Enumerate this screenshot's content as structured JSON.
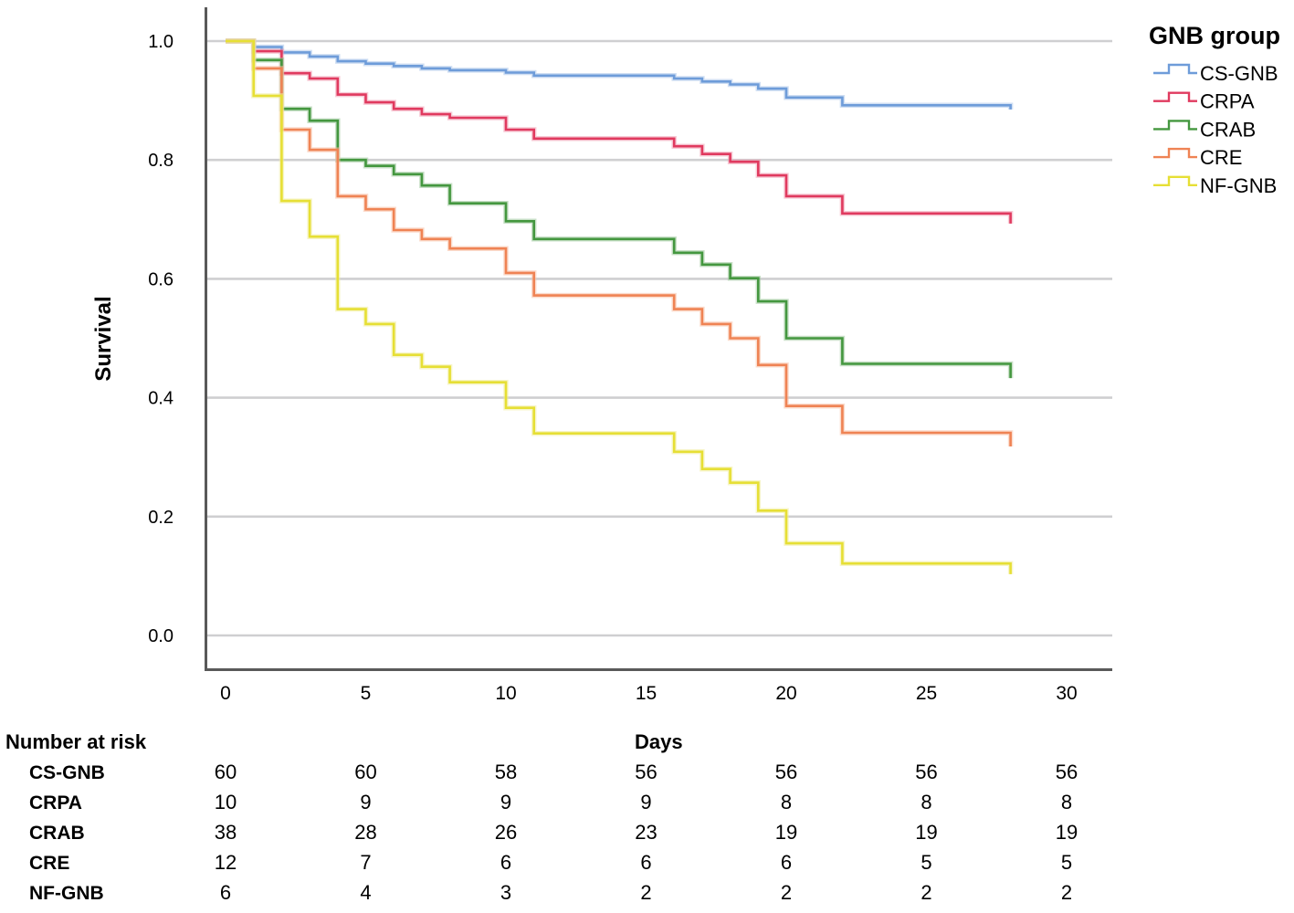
{
  "chart_data": {
    "type": "line",
    "subtype": "kaplan_meier_step_survival",
    "xlabel": "Days",
    "ylabel": "Survival",
    "legend_title": "GNB group",
    "legend_position": "outside-top-right",
    "grid": "horizontal",
    "xlim": [
      0,
      30
    ],
    "ylim": [
      0.0,
      1.0
    ],
    "x_ticks": [
      0,
      5,
      10,
      15,
      20,
      25,
      30
    ],
    "y_ticks": [
      1.0,
      0.8,
      0.6,
      0.4,
      0.2,
      0.0
    ],
    "y_tick_labels": [
      "1.0",
      "0.8",
      "0.6",
      "0.4",
      "0.2",
      "0.0"
    ],
    "axis_color": "#595959",
    "grid_color": "#CFCFD1",
    "series": [
      {
        "name": "CS-GNB",
        "color": "#6E9CD9",
        "halo": "#A9C5EA",
        "points": [
          [
            0,
            1.0
          ],
          [
            1,
            0.99
          ],
          [
            2,
            0.981
          ],
          [
            3,
            0.974
          ],
          [
            4,
            0.966
          ],
          [
            5,
            0.962
          ],
          [
            6,
            0.958
          ],
          [
            7,
            0.954
          ],
          [
            8,
            0.951
          ],
          [
            10,
            0.947
          ],
          [
            11,
            0.942
          ],
          [
            16,
            0.937
          ],
          [
            17,
            0.932
          ],
          [
            18,
            0.927
          ],
          [
            19,
            0.92
          ],
          [
            20,
            0.905
          ],
          [
            22,
            0.892
          ],
          [
            28,
            0.885
          ]
        ]
      },
      {
        "name": "CRPA",
        "color": "#E03A5F",
        "halo": "#F0A1B4",
        "points": [
          [
            0,
            1.0
          ],
          [
            1,
            0.983
          ],
          [
            2,
            0.946
          ],
          [
            3,
            0.937
          ],
          [
            4,
            0.91
          ],
          [
            5,
            0.897
          ],
          [
            6,
            0.886
          ],
          [
            7,
            0.877
          ],
          [
            8,
            0.871
          ],
          [
            10,
            0.851
          ],
          [
            11,
            0.836
          ],
          [
            16,
            0.823
          ],
          [
            17,
            0.81
          ],
          [
            18,
            0.797
          ],
          [
            19,
            0.774
          ],
          [
            20,
            0.739
          ],
          [
            22,
            0.71
          ],
          [
            28,
            0.693
          ]
        ]
      },
      {
        "name": "CRAB",
        "color": "#44973F",
        "halo": "#9CC79A",
        "points": [
          [
            0,
            1.0
          ],
          [
            1,
            0.968
          ],
          [
            2,
            0.886
          ],
          [
            3,
            0.866
          ],
          [
            4,
            0.8
          ],
          [
            5,
            0.79
          ],
          [
            6,
            0.776
          ],
          [
            7,
            0.757
          ],
          [
            8,
            0.727
          ],
          [
            10,
            0.697
          ],
          [
            11,
            0.667
          ],
          [
            16,
            0.644
          ],
          [
            17,
            0.624
          ],
          [
            18,
            0.601
          ],
          [
            19,
            0.562
          ],
          [
            20,
            0.5
          ],
          [
            22,
            0.457
          ],
          [
            28,
            0.433
          ]
        ]
      },
      {
        "name": "CRE",
        "color": "#EF8354",
        "halo": "#F7BFA4",
        "points": [
          [
            0,
            1.0
          ],
          [
            1,
            0.954
          ],
          [
            2,
            0.851
          ],
          [
            3,
            0.817
          ],
          [
            4,
            0.739
          ],
          [
            5,
            0.717
          ],
          [
            6,
            0.682
          ],
          [
            7,
            0.667
          ],
          [
            8,
            0.651
          ],
          [
            10,
            0.61
          ],
          [
            11,
            0.572
          ],
          [
            16,
            0.549
          ],
          [
            17,
            0.524
          ],
          [
            18,
            0.5
          ],
          [
            19,
            0.455
          ],
          [
            20,
            0.386
          ],
          [
            22,
            0.341
          ],
          [
            28,
            0.318
          ]
        ]
      },
      {
        "name": "NF-GNB",
        "color": "#E6DF35",
        "halo": "#F1EC9D",
        "points": [
          [
            0,
            1.0
          ],
          [
            1,
            0.908
          ],
          [
            2,
            0.731
          ],
          [
            3,
            0.671
          ],
          [
            4,
            0.549
          ],
          [
            5,
            0.524
          ],
          [
            6,
            0.472
          ],
          [
            7,
            0.452
          ],
          [
            8,
            0.426
          ],
          [
            10,
            0.383
          ],
          [
            11,
            0.34
          ],
          [
            16,
            0.309
          ],
          [
            17,
            0.28
          ],
          [
            18,
            0.257
          ],
          [
            19,
            0.21
          ],
          [
            20,
            0.155
          ],
          [
            22,
            0.121
          ],
          [
            28,
            0.103
          ]
        ]
      }
    ],
    "number_at_risk": {
      "title": "Number at risk",
      "days": [
        0,
        5,
        10,
        15,
        20,
        25,
        30
      ],
      "rows": [
        {
          "name": "CS-GNB",
          "counts": [
            60,
            60,
            58,
            56,
            56,
            56,
            56
          ]
        },
        {
          "name": "CRPA",
          "counts": [
            10,
            9,
            9,
            9,
            8,
            8,
            8
          ]
        },
        {
          "name": "CRAB",
          "counts": [
            38,
            28,
            26,
            23,
            19,
            19,
            19
          ]
        },
        {
          "name": "CRE",
          "counts": [
            12,
            7,
            6,
            6,
            6,
            5,
            5
          ]
        },
        {
          "name": "NF-GNB",
          "counts": [
            6,
            4,
            3,
            2,
            2,
            2,
            2
          ]
        }
      ]
    }
  }
}
